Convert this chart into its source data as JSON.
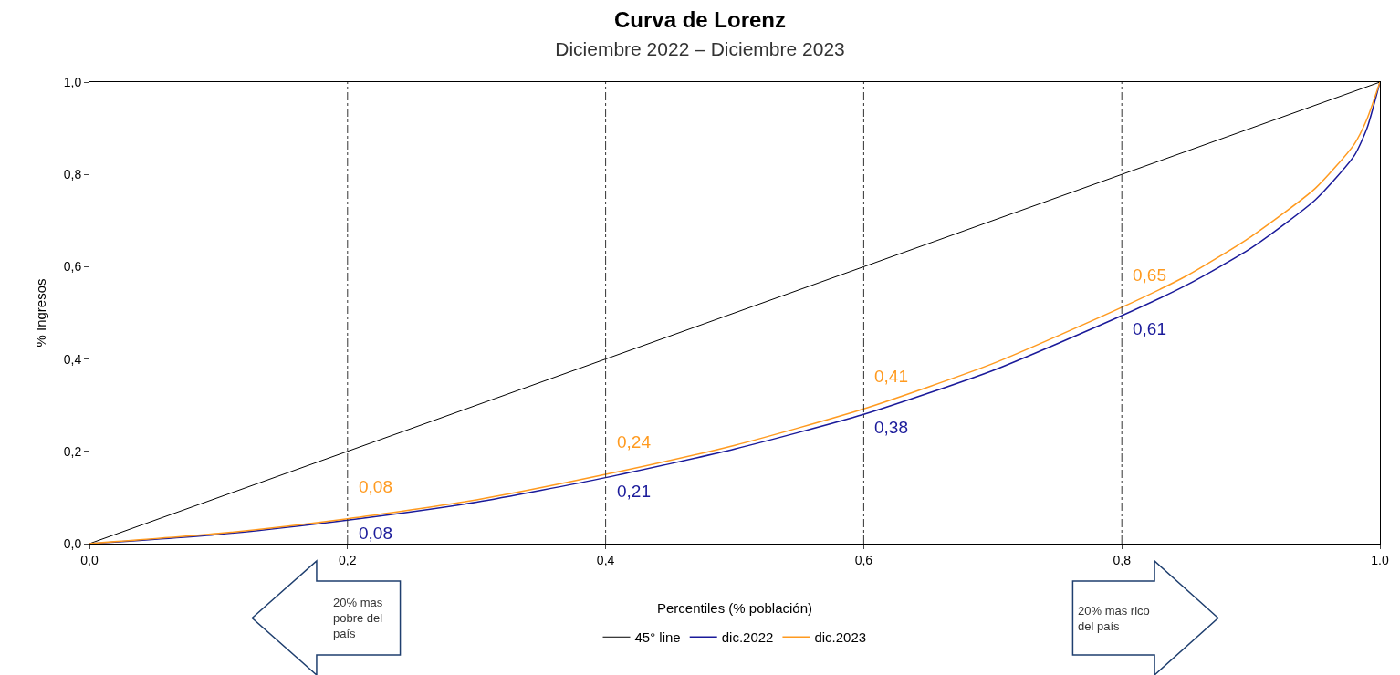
{
  "chart_data": {
    "type": "line",
    "title": "Curva de Lorenz",
    "subtitle": "Diciembre 2022 – Diciembre 2023",
    "xlabel": "Percentiles (% población)",
    "ylabel": "% Ingresos",
    "x": [
      0,
      0.1,
      0.2,
      0.3,
      0.4,
      0.5,
      0.6,
      0.7,
      0.8,
      0.85,
      0.9,
      0.95,
      0.98,
      0.99,
      1.0
    ],
    "series": [
      {
        "name": "45° line",
        "color": "#000000",
        "x": [
          0,
          1
        ],
        "values": [
          0,
          1
        ]
      },
      {
        "name": "dic.2022",
        "color": "#1a1a9a",
        "values": [
          0,
          0.02,
          0.051,
          0.09,
          0.143,
          0.205,
          0.28,
          0.375,
          0.494,
          0.56,
          0.64,
          0.745,
          0.84,
          0.9,
          1.0
        ]
      },
      {
        "name": "dic.2023",
        "color": "#ff9a1f",
        "values": [
          0,
          0.022,
          0.054,
          0.095,
          0.15,
          0.213,
          0.292,
          0.39,
          0.512,
          0.58,
          0.665,
          0.77,
          0.865,
          0.92,
          1.0
        ]
      }
    ],
    "xlim": [
      0,
      1
    ],
    "ylim": [
      0,
      1
    ],
    "xticks": [
      {
        "value": 0,
        "label": "0,0"
      },
      {
        "value": 0.2,
        "label": "0,2"
      },
      {
        "value": 0.4,
        "label": "0,4"
      },
      {
        "value": 0.6,
        "label": "0,6"
      },
      {
        "value": 0.8,
        "label": "0,8"
      },
      {
        "value": 1.0,
        "label": "1.0"
      }
    ],
    "yticks": [
      {
        "value": 0,
        "label": "0,0"
      },
      {
        "value": 0.2,
        "label": "0,2"
      },
      {
        "value": 0.4,
        "label": "0,4"
      },
      {
        "value": 0.6,
        "label": "0,6"
      },
      {
        "value": 0.8,
        "label": "0,8"
      },
      {
        "value": 1.0,
        "label": "1,0"
      }
    ],
    "ref_lines": [
      {
        "axis": "x",
        "value": 0.2,
        "color": "#333333",
        "line_style": "dashed"
      },
      {
        "axis": "x",
        "value": 0.4,
        "color": "#333333",
        "line_style": "dashed"
      },
      {
        "axis": "x",
        "value": 0.6,
        "color": "#333333",
        "line_style": "dashed"
      },
      {
        "axis": "x",
        "value": 0.8,
        "color": "#333333",
        "line_style": "dashed"
      }
    ],
    "annotations": [
      {
        "text": "0,08",
        "x": 0.2,
        "y": 0.054
      },
      {
        "text": "0,08",
        "x": 0.2,
        "y": 0.051
      },
      {
        "text": "0,24",
        "x": 0.4,
        "y": 0.15
      },
      {
        "text": "0,21",
        "x": 0.4,
        "y": 0.143
      },
      {
        "text": "0,41",
        "x": 0.6,
        "y": 0.292
      },
      {
        "text": "0,38",
        "x": 0.6,
        "y": 0.28
      },
      {
        "text": "0,65",
        "x": 0.8,
        "y": 0.512
      },
      {
        "text": "0,61",
        "x": 0.8,
        "y": 0.494
      },
      "20% mas pobre del país",
      "20% mas rico del país"
    ],
    "grid": false,
    "legend": "bottom",
    "marker": "none",
    "line_style": "solid"
  }
}
